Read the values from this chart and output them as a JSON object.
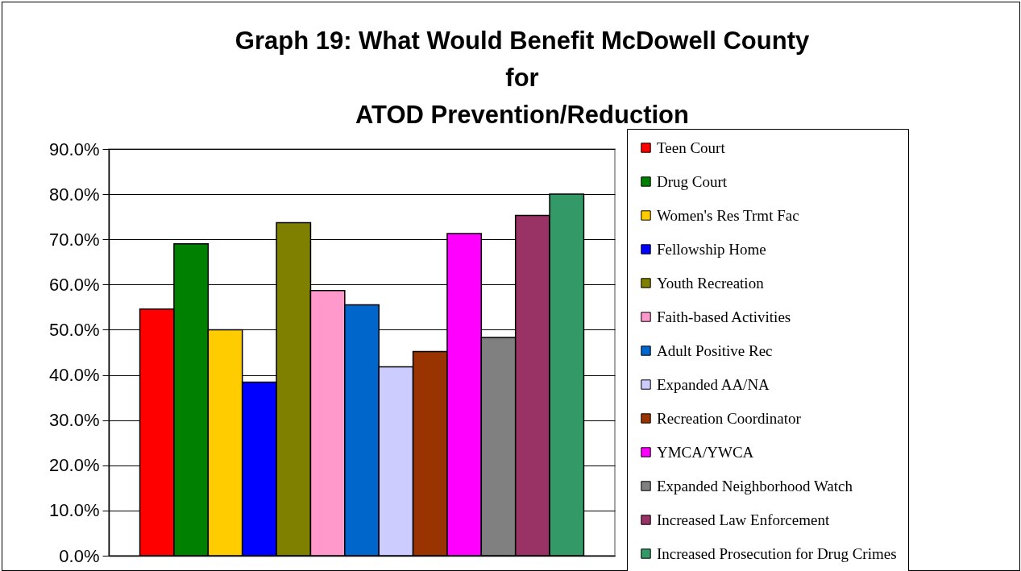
{
  "chart_data": {
    "type": "bar",
    "title": [
      "Graph 19:  What Would Benefit McDowell County",
      "for",
      "ATOD Prevention/Reduction"
    ],
    "categories": [
      null
    ],
    "series": [
      {
        "name": "Teen Court",
        "color": "#ff0000",
        "values": [
          54.6
        ]
      },
      {
        "name": "Drug Court",
        "color": "#008000",
        "values": [
          69.0
        ]
      },
      {
        "name": "Women's Res Trmt Fac",
        "color": "#ffcc00",
        "values": [
          50.0
        ]
      },
      {
        "name": "Fellowship Home",
        "color": "#0000ff",
        "values": [
          38.4
        ]
      },
      {
        "name": "Youth Recreation",
        "color": "#808000",
        "values": [
          73.7
        ]
      },
      {
        "name": "Faith-based Activities",
        "color": "#ff99cc",
        "values": [
          58.7
        ]
      },
      {
        "name": "Adult Positive Rec",
        "color": "#0066cc",
        "values": [
          55.5
        ]
      },
      {
        "name": "Expanded AA/NA",
        "color": "#ccccff",
        "values": [
          41.8
        ]
      },
      {
        "name": "Recreation Coordinator",
        "color": "#993300",
        "values": [
          45.2
        ]
      },
      {
        "name": "YMCA/YWCA",
        "color": "#ff00ff",
        "values": [
          71.3
        ]
      },
      {
        "name": "Expanded Neighborhood Watch",
        "color": "#808080",
        "values": [
          48.3
        ]
      },
      {
        "name": "Increased Law Enforcement",
        "color": "#993366",
        "values": [
          75.3
        ]
      },
      {
        "name": "Increased Prosecution for Drug Crimes",
        "color": "#339966",
        "values": [
          80.0
        ]
      }
    ],
    "ylim": [
      0,
      90
    ],
    "yticks": [
      {
        "value": 0,
        "label": "0.0%"
      },
      {
        "value": 10,
        "label": "10.0%"
      },
      {
        "value": 20,
        "label": "20.0%"
      },
      {
        "value": 30,
        "label": "30.0%"
      },
      {
        "value": 40,
        "label": "40.0%"
      },
      {
        "value": 50,
        "label": "50.0%"
      },
      {
        "value": 60,
        "label": "60.0%"
      },
      {
        "value": 70,
        "label": "70.0%"
      },
      {
        "value": 80,
        "label": "80.0%"
      },
      {
        "value": 90,
        "label": "90.0%"
      }
    ],
    "grid": "y",
    "legend": "right",
    "tick_labels": "y"
  }
}
